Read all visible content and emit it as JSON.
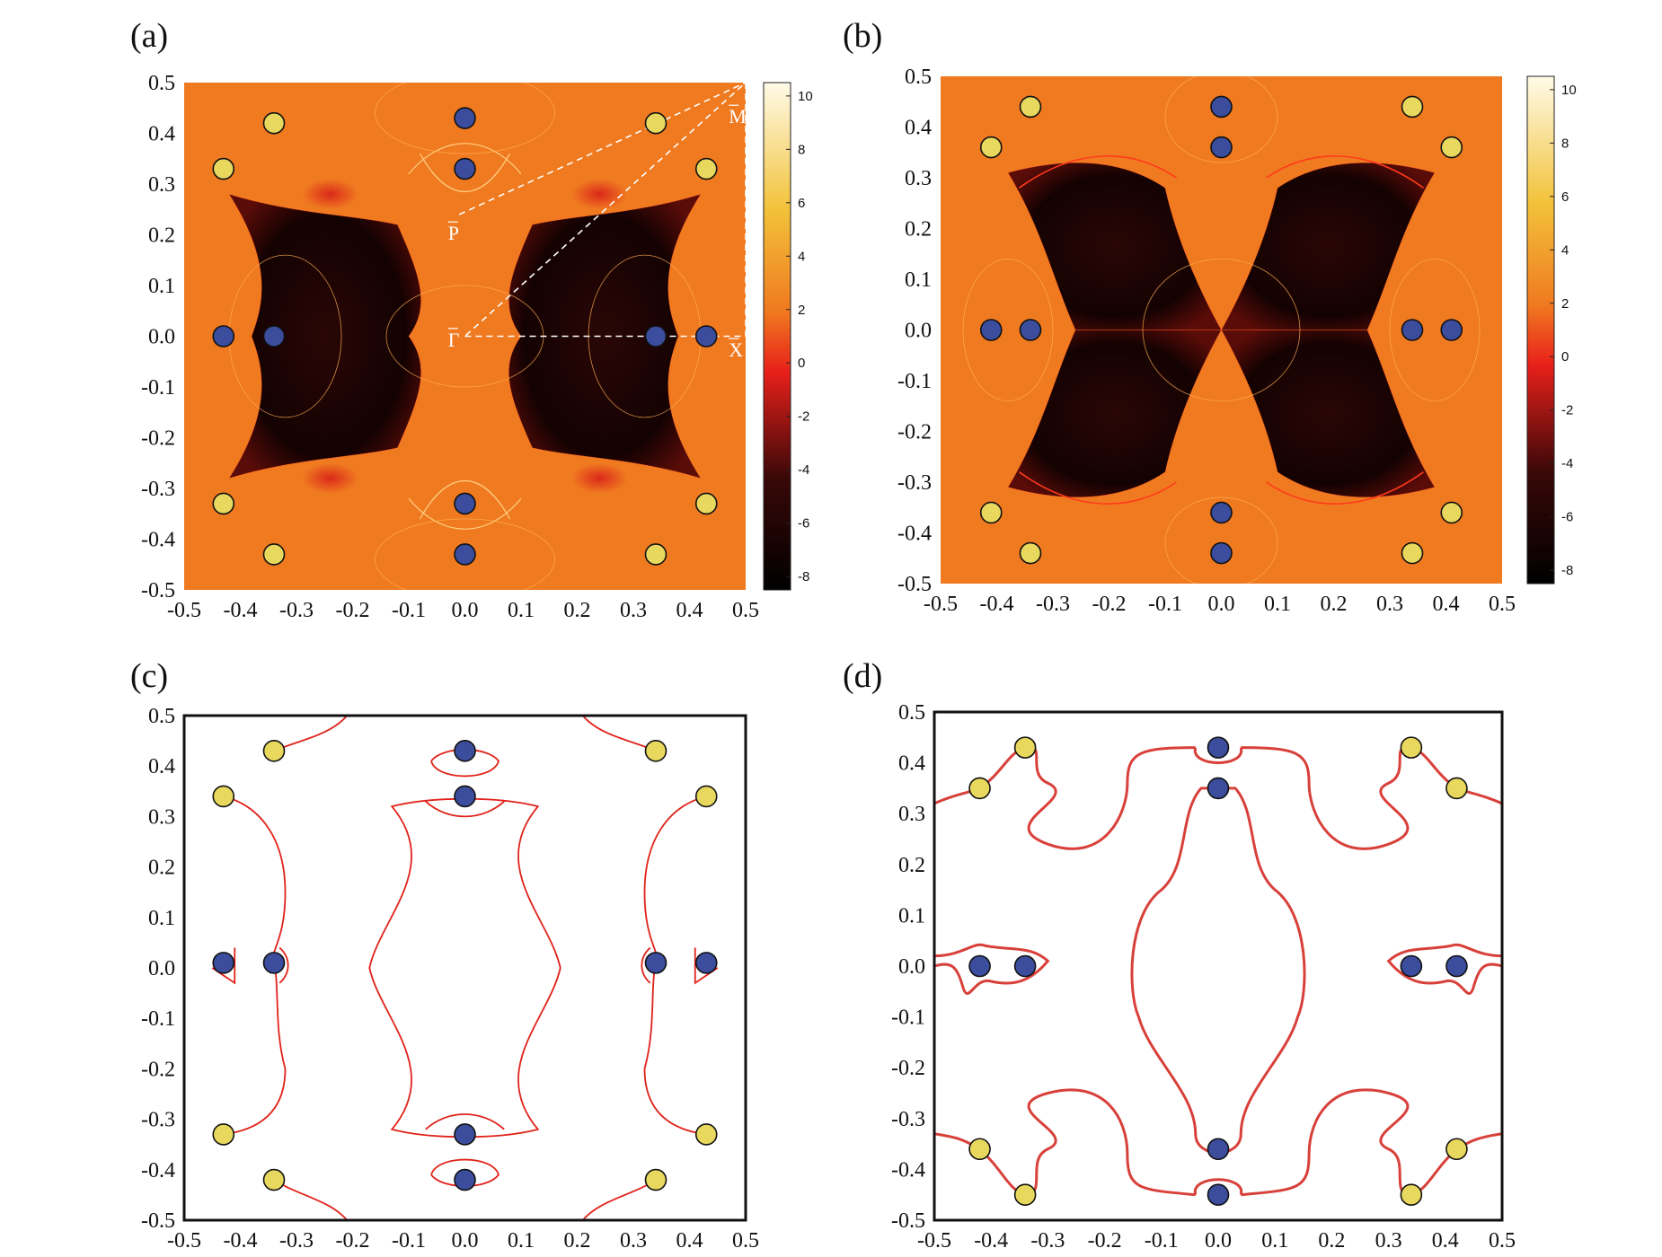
{
  "colors": {
    "weyl_a": "#e8d85e",
    "weyl_b": "#3b4d9c",
    "marker_stroke": "#111111",
    "arc": "#e0221a",
    "arc_d": "#d8403a",
    "frame": "#111111",
    "heat_low": "#000000",
    "heat_mid": "#e8201a",
    "heat_high": "#f07a20",
    "heat_top": "#fffbe8",
    "path_line": "#ffffff"
  },
  "chart_data": [
    {
      "panel": "(a)",
      "type": "heatmap",
      "xlim": [
        -0.5,
        0.5
      ],
      "ylim": [
        -0.5,
        0.5
      ],
      "xticks": [
        "-0.5",
        "-0.4",
        "-0.3",
        "-0.2",
        "-0.1",
        "0.0",
        "0.1",
        "0.2",
        "0.3",
        "0.4",
        "0.5"
      ],
      "yticks": [
        "0.5",
        "0.4",
        "0.3",
        "0.2",
        "0.1",
        "0.0",
        "-0.1",
        "-0.2",
        "-0.3",
        "-0.4",
        "-0.5"
      ],
      "colorbar": {
        "ticks": [
          "10",
          "8",
          "6",
          "4",
          "2",
          "0",
          "-2",
          "-4",
          "-6",
          "-8"
        ],
        "range": [
          -8.5,
          10.5
        ]
      },
      "points_a": [
        [
          -0.34,
          0.42
        ],
        [
          0.34,
          0.42
        ],
        [
          -0.43,
          0.33
        ],
        [
          0.43,
          0.33
        ],
        [
          -0.43,
          -0.33
        ],
        [
          0.43,
          -0.33
        ],
        [
          -0.34,
          -0.43
        ],
        [
          0.34,
          -0.43
        ]
      ],
      "points_b": [
        [
          0.0,
          0.43
        ],
        [
          0.0,
          0.33
        ],
        [
          -0.43,
          0.0
        ],
        [
          -0.34,
          0.0
        ],
        [
          0.34,
          0.0
        ],
        [
          0.43,
          0.0
        ],
        [
          0.0,
          -0.33
        ],
        [
          0.0,
          -0.43
        ]
      ],
      "path_labels": {
        "gamma": "Γ",
        "x": "X",
        "m": "M",
        "p": "P"
      },
      "path": [
        [
          0.0,
          0.0
        ],
        [
          0.5,
          0.0
        ],
        [
          0.5,
          0.5
        ],
        [
          0.0,
          0.0
        ]
      ],
      "path_p": [
        [
          -0.01,
          0.24
        ],
        [
          0.5,
          0.5
        ]
      ]
    },
    {
      "panel": "(b)",
      "type": "heatmap",
      "xlim": [
        -0.5,
        0.5
      ],
      "ylim": [
        -0.5,
        0.5
      ],
      "xticks": [
        "-0.5",
        "-0.4",
        "-0.3",
        "-0.2",
        "-0.1",
        "0.0",
        "0.1",
        "0.2",
        "0.3",
        "0.4",
        "0.5"
      ],
      "yticks": [
        "0.5",
        "0.4",
        "0.3",
        "0.2",
        "0.1",
        "0.0",
        "-0.1",
        "-0.2",
        "-0.3",
        "-0.4",
        "-0.5"
      ],
      "colorbar": {
        "ticks": [
          "10",
          "8",
          "6",
          "4",
          "2",
          "0",
          "-2",
          "-4",
          "-6",
          "-8"
        ],
        "range": [
          -8.5,
          10.5
        ]
      },
      "points_a": [
        [
          -0.34,
          0.44
        ],
        [
          0.34,
          0.44
        ],
        [
          -0.41,
          0.36
        ],
        [
          0.41,
          0.36
        ],
        [
          -0.41,
          -0.36
        ],
        [
          0.41,
          -0.36
        ],
        [
          -0.34,
          -0.44
        ],
        [
          0.34,
          -0.44
        ]
      ],
      "points_b": [
        [
          0.0,
          0.44
        ],
        [
          0.0,
          0.36
        ],
        [
          -0.41,
          0.0
        ],
        [
          -0.34,
          0.0
        ],
        [
          0.34,
          0.0
        ],
        [
          0.41,
          0.0
        ],
        [
          0.0,
          -0.36
        ],
        [
          0.0,
          -0.44
        ]
      ]
    },
    {
      "panel": "(c)",
      "type": "line",
      "xlim": [
        -0.5,
        0.5
      ],
      "ylim": [
        -0.5,
        0.5
      ],
      "xticks": [
        "-0.5",
        "-0.4",
        "-0.3",
        "-0.2",
        "-0.1",
        "0.0",
        "0.1",
        "0.2",
        "0.3",
        "0.4",
        "0.5"
      ],
      "yticks": [
        "0.5",
        "0.4",
        "0.3",
        "0.2",
        "0.1",
        "0.0",
        "-0.1",
        "-0.2",
        "-0.3",
        "-0.4",
        "-0.5"
      ],
      "points_a": [
        [
          -0.34,
          0.43
        ],
        [
          0.34,
          0.43
        ],
        [
          -0.43,
          0.34
        ],
        [
          0.43,
          0.34
        ],
        [
          -0.43,
          -0.33
        ],
        [
          0.43,
          -0.33
        ],
        [
          -0.34,
          -0.42
        ],
        [
          0.34,
          -0.42
        ]
      ],
      "points_b": [
        [
          0.0,
          0.43
        ],
        [
          0.0,
          0.34
        ],
        [
          -0.43,
          0.01
        ],
        [
          -0.34,
          0.01
        ],
        [
          0.34,
          0.01
        ],
        [
          0.43,
          0.01
        ],
        [
          0.0,
          -0.33
        ],
        [
          0.0,
          -0.42
        ]
      ]
    },
    {
      "panel": "(d)",
      "type": "line",
      "xlim": [
        -0.5,
        0.5
      ],
      "ylim": [
        -0.5,
        0.5
      ],
      "xticks": [
        "-0.5",
        "-0.4",
        "-0.3",
        "-0.2",
        "-0.1",
        "0.0",
        "0.1",
        "0.2",
        "0.3",
        "0.4",
        "0.5"
      ],
      "yticks": [
        "0.5",
        "0.4",
        "0.3",
        "0.2",
        "0.1",
        "0.0",
        "-0.1",
        "-0.2",
        "-0.3",
        "-0.4",
        "-0.5"
      ],
      "points_a": [
        [
          -0.34,
          0.43
        ],
        [
          0.34,
          0.43
        ],
        [
          -0.42,
          0.35
        ],
        [
          0.42,
          0.35
        ],
        [
          -0.42,
          -0.36
        ],
        [
          0.42,
          -0.36
        ],
        [
          -0.34,
          -0.45
        ],
        [
          0.34,
          -0.45
        ]
      ],
      "points_b": [
        [
          0.0,
          0.43
        ],
        [
          0.0,
          0.35
        ],
        [
          -0.42,
          0.0
        ],
        [
          -0.34,
          0.0
        ],
        [
          0.34,
          0.0
        ],
        [
          0.42,
          0.0
        ],
        [
          0.0,
          -0.36
        ],
        [
          0.0,
          -0.45
        ]
      ]
    }
  ]
}
